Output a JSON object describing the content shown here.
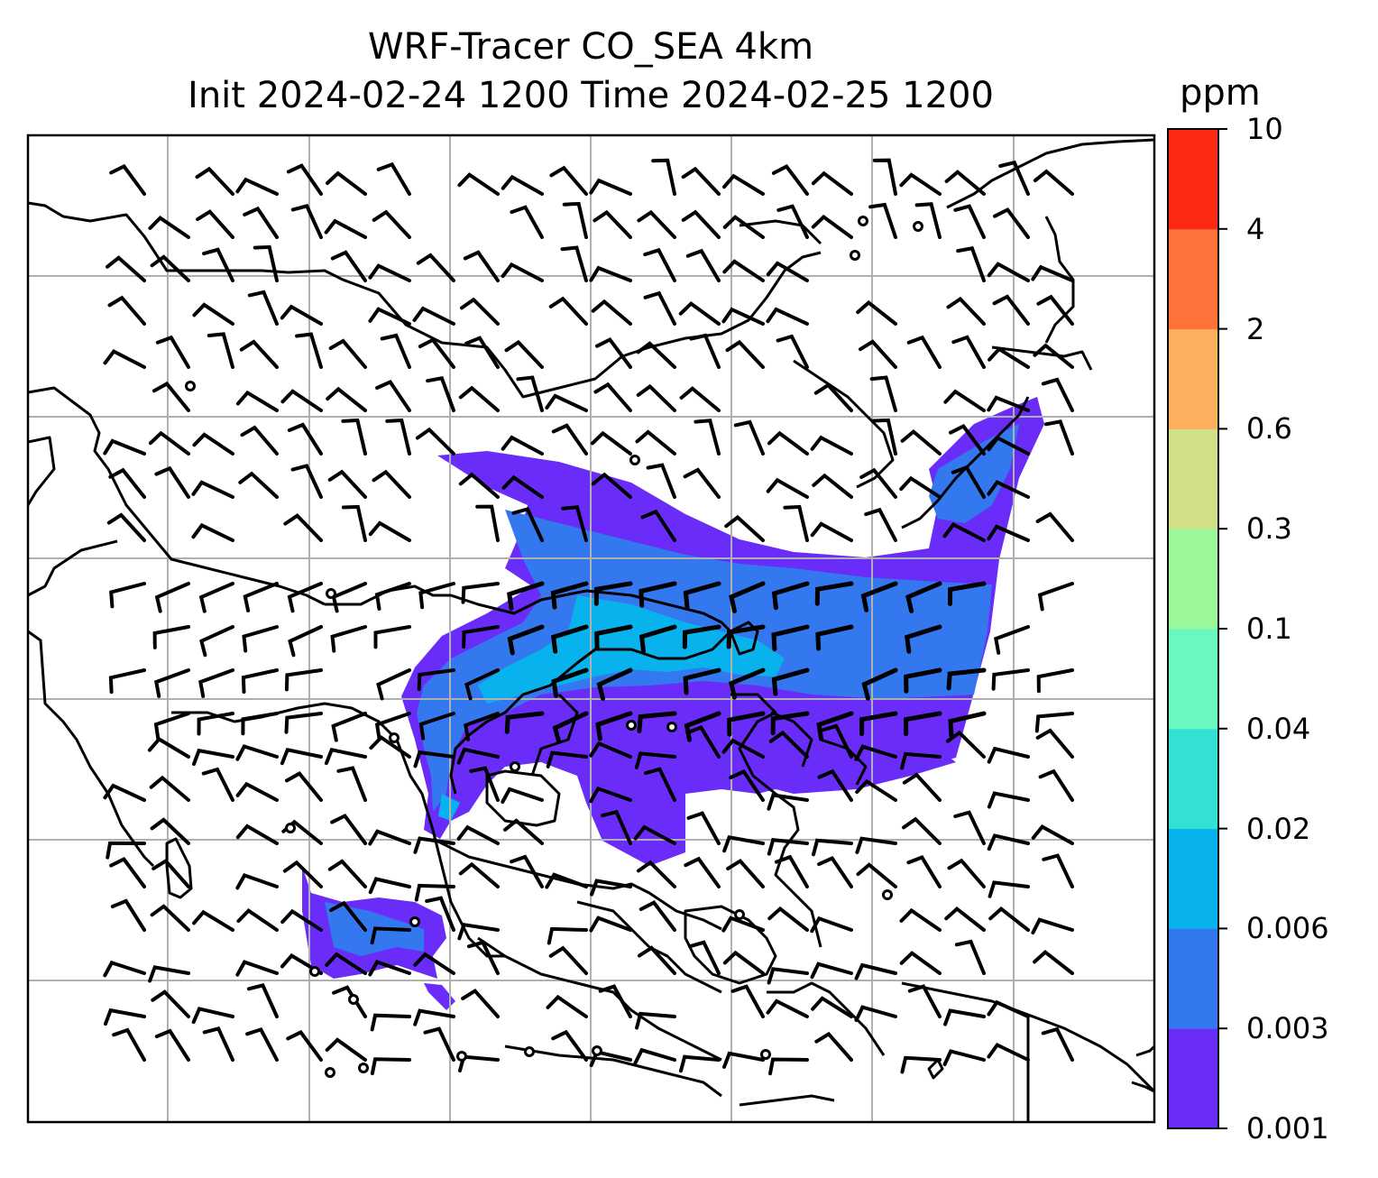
{
  "title": {
    "line1": "WRF-Tracer CO_SEA 4km",
    "line2": "Init 2024-02-24 1200 Time 2024-02-25 1200"
  },
  "colorbar": {
    "unit": "ppm",
    "levels": [
      "0.001",
      "0.003",
      "0.006",
      "0.02",
      "0.04",
      "0.1",
      "0.3",
      "0.6",
      "2",
      "4",
      "10"
    ],
    "colors": [
      "#6a2cf8",
      "#3478f0",
      "#08b2ec",
      "#32e0d4",
      "#6af8c0",
      "#9af89a",
      "#d0e086",
      "#fcb05e",
      "#ff723a",
      "#ff2a16"
    ]
  },
  "map": {
    "gridlines": true,
    "plume_colors": {
      "outer": "#6a2cf8",
      "mid": "#3478f0",
      "inner": "#08b2ec"
    }
  }
}
